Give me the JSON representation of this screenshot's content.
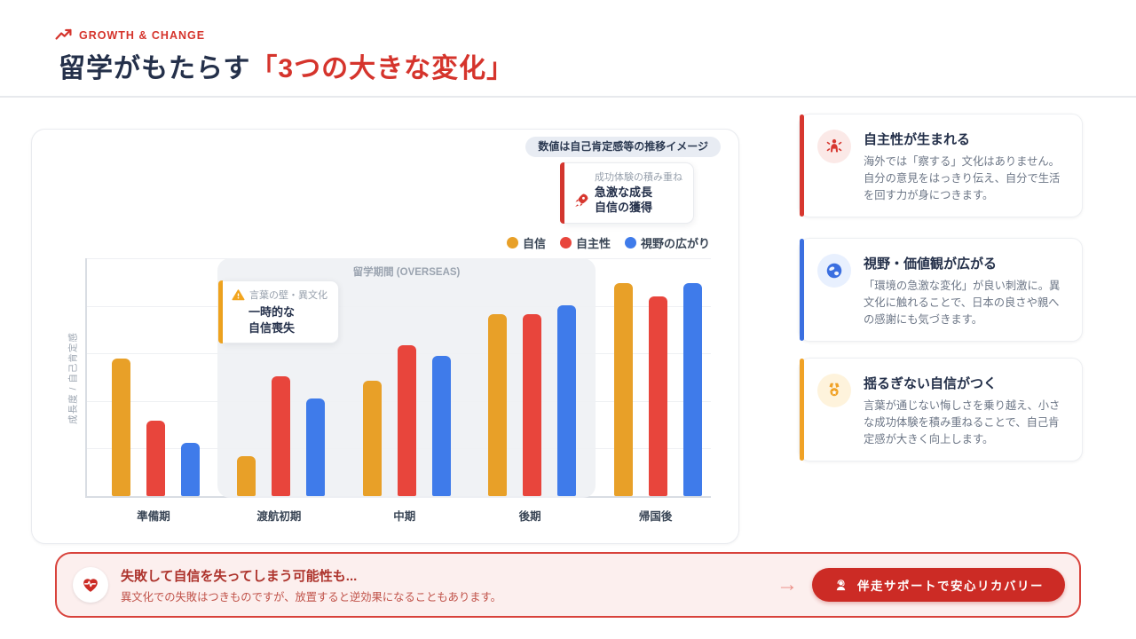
{
  "header": {
    "eyebrow": "GROWTH & CHANGE",
    "eyebrow_icon": "trending-up-icon",
    "title_main": "留学がもたらす",
    "title_accent": "「3つの大きな変化」"
  },
  "chart_panel": {
    "badge": "数値は自己肯定感等の推移イメージ",
    "growth_callout": {
      "icon": "rocket-icon",
      "caption": "成功体験の積み重ね",
      "line1": "急激な成長",
      "line2": "自信の獲得"
    },
    "dip_callout": {
      "icon": "warning-icon",
      "caption": "言葉の壁・異文化",
      "line1": "一時的な",
      "line2": "自信喪失"
    }
  },
  "chart_data": {
    "type": "bar",
    "title": "留学期間 (OVERSEAS)",
    "categories": [
      "準備期",
      "渡航初期",
      "中期",
      "後期",
      "帰国後"
    ],
    "series": [
      {
        "name": "自信",
        "color": "#E8A028",
        "values": [
          62,
          18,
          52,
          82,
          96
        ]
      },
      {
        "name": "自主性",
        "color": "#E8453C",
        "values": [
          34,
          54,
          68,
          82,
          90
        ]
      },
      {
        "name": "視野の広がり",
        "color": "#3F7BEA",
        "values": [
          24,
          44,
          63,
          86,
          96
        ]
      }
    ],
    "xlabel": "",
    "ylabel": "成長度 / 自己肯定感",
    "ylim": [
      0,
      100
    ],
    "grid": true,
    "legend_position": "top-right",
    "highlight_region": {
      "label": "留学期間 (OVERSEAS)",
      "from": "渡航初期",
      "to": "後期"
    },
    "note": "数値は自己肯定感等の推移イメージ"
  },
  "benefit_cards": [
    {
      "icon": "person-rays-icon",
      "accent": "#D7372F",
      "icon_bg": "#FBE9E7",
      "title": "自主性が生まれる",
      "body": "海外では「察する」文化はありません。自分の意見をはっきり伝え、自分で生活を回す力が身につきます。"
    },
    {
      "icon": "globe-icon",
      "accent": "#3B6FE0",
      "icon_bg": "#E8F0FE",
      "title": "視野・価値観が広がる",
      "body": "「環境の急激な変化」が良い刺激に。異文化に触れることで、日本の良さや親への感謝にも気づきます。"
    },
    {
      "icon": "medal-icon",
      "accent": "#F0A226",
      "icon_bg": "#FEF3DC",
      "title": "揺るぎない自信がつく",
      "body": "言葉が通じない悔しさを乗り越え、小さな成功体験を積み重ねることで、自己肯定感が大きく向上します。"
    }
  ],
  "risk_banner": {
    "icon": "heart-pulse-icon",
    "title": "失敗して自信を失ってしまう可能性も...",
    "body": "異文化での失敗はつきものですが、放置すると逆効果になることもあります。",
    "arrow": "→",
    "cta_icon": "support-person-icon",
    "cta_label": "伴走サポートで安心リカバリー"
  },
  "colors": {
    "accent_red": "#D5342C",
    "navy": "#24304A",
    "bar_orange": "#E8A028",
    "bar_red": "#E8453C",
    "bar_blue": "#3F7BEA",
    "banner_bg": "#FCEFEE",
    "banner_border": "#D8423B",
    "cta_bg": "#CC2B25",
    "badge_bg": "#E8ECF3"
  }
}
